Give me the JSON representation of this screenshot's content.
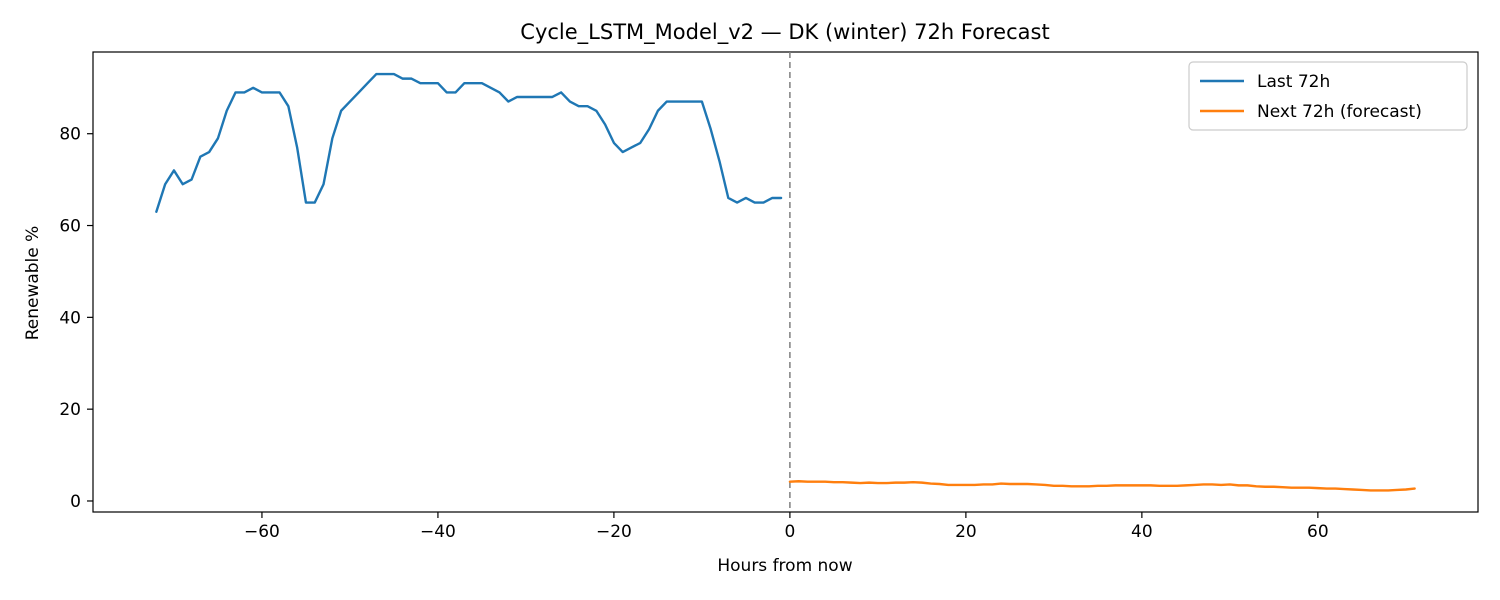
{
  "chart_data": {
    "type": "line",
    "title": "Cycle_LSTM_Model_v2 — DK (winter) 72h Forecast",
    "xlabel": "Hours from now",
    "ylabel": "Renewable %",
    "xlim": [
      -79.2,
      78.2
    ],
    "ylim": [
      -2.4,
      97.8
    ],
    "xticks": [
      -60,
      -40,
      -20,
      0,
      20,
      40,
      60
    ],
    "xtick_labels": [
      "−60",
      "−40",
      "−20",
      "0",
      "20",
      "40",
      "60"
    ],
    "yticks": [
      0,
      20,
      40,
      60,
      80
    ],
    "ytick_labels": [
      "0",
      "20",
      "40",
      "60",
      "80"
    ],
    "divider_x": 0,
    "legend_position": "top-right",
    "series": [
      {
        "name": "Last 72h",
        "color": "#1f77b4",
        "x_start": -72,
        "values": [
          63,
          69,
          72,
          69,
          70,
          75,
          76,
          79,
          85,
          89,
          89,
          90,
          89,
          89,
          89,
          86,
          77,
          65,
          65,
          69,
          79,
          85,
          87,
          89,
          91,
          93,
          93,
          93,
          92,
          92,
          91,
          91,
          91,
          89,
          89,
          91,
          91,
          91,
          90,
          89,
          87,
          88,
          88,
          88,
          88,
          88,
          89,
          87,
          86,
          86,
          85,
          82,
          78,
          76,
          77,
          78,
          81,
          85,
          87,
          87,
          87,
          87,
          87,
          81,
          74,
          66,
          65,
          66,
          65,
          65,
          66,
          66
        ]
      },
      {
        "name": "Next 72h (forecast)",
        "color": "#ff7f0e",
        "x_start": 0,
        "values": [
          4.2,
          4.3,
          4.2,
          4.2,
          4.2,
          4.1,
          4.1,
          4.0,
          3.9,
          4.0,
          3.9,
          3.9,
          4.0,
          4.0,
          4.1,
          4.0,
          3.8,
          3.7,
          3.5,
          3.5,
          3.5,
          3.5,
          3.6,
          3.6,
          3.8,
          3.7,
          3.7,
          3.7,
          3.6,
          3.5,
          3.3,
          3.3,
          3.2,
          3.2,
          3.2,
          3.3,
          3.3,
          3.4,
          3.4,
          3.4,
          3.4,
          3.4,
          3.3,
          3.3,
          3.3,
          3.4,
          3.5,
          3.6,
          3.6,
          3.5,
          3.6,
          3.4,
          3.4,
          3.2,
          3.1,
          3.1,
          3.0,
          2.9,
          2.9,
          2.9,
          2.8,
          2.7,
          2.7,
          2.6,
          2.5,
          2.4,
          2.3,
          2.3,
          2.3,
          2.4,
          2.5,
          2.7
        ]
      }
    ]
  }
}
